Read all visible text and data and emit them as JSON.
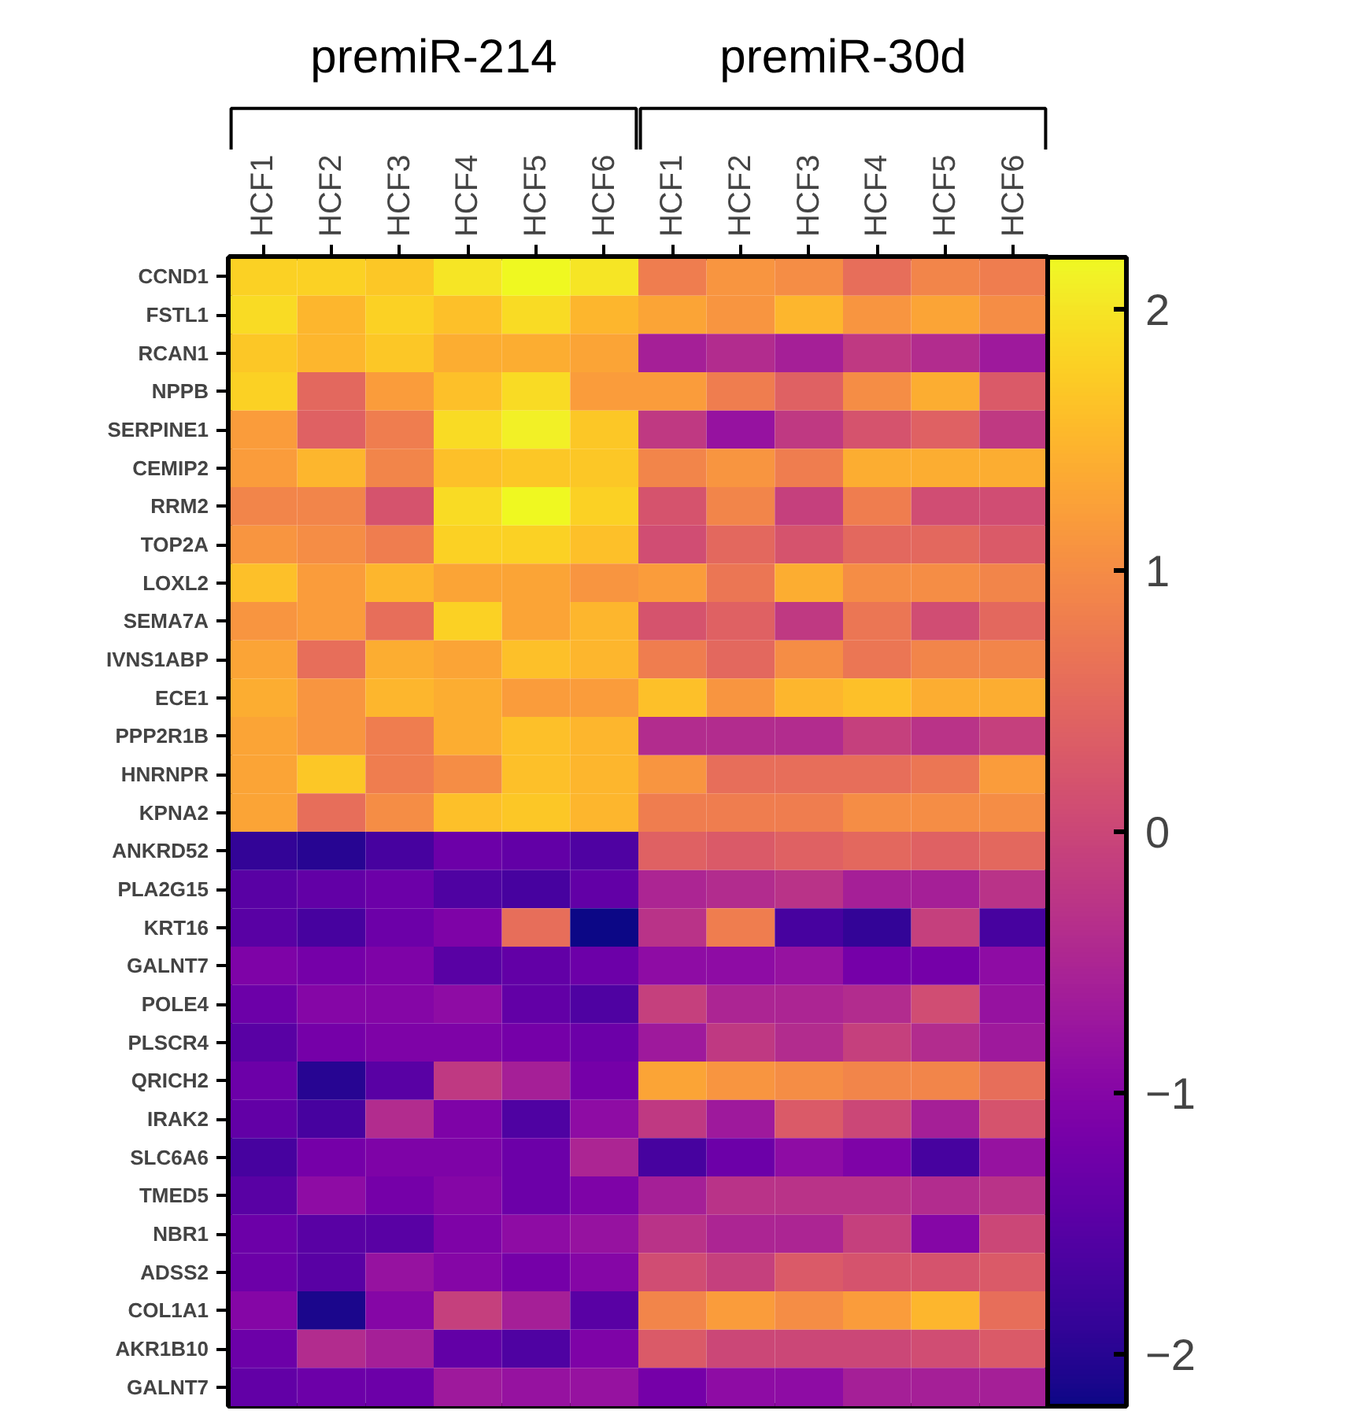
{
  "chart_data": {
    "type": "heatmap",
    "annotations": [
      "premiR-214",
      "premiR-30d"
    ],
    "categories": [
      "HCF1",
      "HCF2",
      "HCF3",
      "HCF4",
      "HCF5",
      "HCF6",
      "HCF1",
      "HCF2",
      "HCF3",
      "HCF4",
      "HCF5",
      "HCF6"
    ],
    "y_categories": [
      "CCND1",
      "FSTL1",
      "RCAN1",
      "NPPB",
      "SERPINE1",
      "CEMIP2",
      "RRM2",
      "TOP2A",
      "LOXL2",
      "SEMA7A",
      "IVNS1ABP",
      "ECE1",
      "PPP2R1B",
      "HNRNPR",
      "KPNA2",
      "ANKRD52",
      "PLA2G15",
      "KRT16",
      "GALNT7",
      "POLE4",
      "PLSCR4",
      "QRICH2",
      "IRAK2",
      "SLC6A6",
      "TMED5",
      "NBR1",
      "ADSS2",
      "COL1A1",
      "AKR1B10",
      "GALNT7"
    ],
    "cells": [
      [
        1.8,
        1.8,
        1.7,
        2.0,
        2.2,
        2.0,
        0.8,
        1.1,
        1.0,
        0.6,
        0.9,
        0.8
      ],
      [
        1.9,
        1.5,
        1.8,
        1.6,
        1.9,
        1.5,
        1.3,
        1.1,
        1.5,
        1.1,
        1.3,
        1.0
      ],
      [
        1.7,
        1.5,
        1.7,
        1.4,
        1.4,
        1.3,
        -0.6,
        -0.4,
        -0.6,
        -0.2,
        -0.4,
        -0.7
      ],
      [
        1.8,
        0.5,
        1.2,
        1.6,
        1.9,
        1.2,
        1.2,
        0.8,
        0.4,
        1.0,
        1.4,
        0.3
      ],
      [
        1.2,
        0.4,
        0.8,
        1.9,
        2.1,
        1.7,
        -0.2,
        -0.8,
        -0.2,
        0.2,
        0.4,
        -0.2
      ],
      [
        1.2,
        1.5,
        0.9,
        1.6,
        1.7,
        1.7,
        0.9,
        1.1,
        0.8,
        1.4,
        1.4,
        1.4
      ],
      [
        0.9,
        0.9,
        0.2,
        1.9,
        2.2,
        1.8,
        0.2,
        0.9,
        -0.1,
        0.8,
        0.1,
        0.1
      ],
      [
        1.1,
        1.0,
        0.8,
        1.8,
        1.8,
        1.6,
        0.1,
        0.5,
        0.2,
        0.5,
        0.5,
        0.3
      ],
      [
        1.6,
        1.2,
        1.5,
        1.3,
        1.3,
        1.1,
        1.2,
        0.7,
        1.4,
        1.0,
        1.0,
        0.9
      ],
      [
        1.1,
        1.2,
        0.6,
        1.8,
        1.3,
        1.5,
        0.2,
        0.4,
        -0.2,
        0.7,
        0.1,
        0.5
      ],
      [
        1.3,
        0.6,
        1.4,
        1.3,
        1.6,
        1.5,
        0.8,
        0.5,
        1.0,
        0.7,
        0.9,
        0.9
      ],
      [
        1.4,
        1.1,
        1.5,
        1.4,
        1.2,
        1.2,
        1.6,
        1.1,
        1.5,
        1.6,
        1.4,
        1.4
      ],
      [
        1.3,
        1.1,
        0.8,
        1.4,
        1.6,
        1.5,
        -0.4,
        -0.4,
        -0.4,
        -0.1,
        -0.3,
        -0.1
      ],
      [
        1.3,
        1.7,
        0.8,
        1.0,
        1.6,
        1.5,
        1.1,
        0.6,
        0.6,
        0.6,
        0.7,
        1.2
      ],
      [
        1.3,
        0.6,
        1.0,
        1.6,
        1.7,
        1.5,
        0.8,
        0.8,
        0.8,
        1.0,
        1.0,
        1.0
      ],
      [
        -1.9,
        -2.0,
        -1.7,
        -1.3,
        -1.4,
        -1.6,
        0.4,
        0.3,
        0.4,
        0.5,
        0.4,
        0.5
      ],
      [
        -1.5,
        -1.4,
        -1.3,
        -1.6,
        -1.7,
        -1.4,
        -0.5,
        -0.4,
        -0.3,
        -0.6,
        -0.6,
        -0.3
      ],
      [
        -1.5,
        -1.7,
        -1.3,
        -1.1,
        0.6,
        -2.2,
        -0.3,
        0.8,
        -1.7,
        -1.9,
        -0.1,
        -1.7
      ],
      [
        -1.1,
        -1.2,
        -1.1,
        -1.5,
        -1.4,
        -1.3,
        -0.9,
        -0.9,
        -0.8,
        -1.2,
        -1.2,
        -0.9
      ],
      [
        -1.3,
        -1.0,
        -1.0,
        -0.9,
        -1.4,
        -1.6,
        -0.1,
        -0.5,
        -0.5,
        -0.4,
        0.1,
        -0.8
      ],
      [
        -1.5,
        -1.2,
        -1.1,
        -1.1,
        -1.2,
        -1.3,
        -0.7,
        -0.2,
        -0.4,
        -0.1,
        -0.4,
        -0.7
      ],
      [
        -1.3,
        -2.0,
        -1.5,
        -0.2,
        -0.6,
        -1.2,
        1.3,
        1.1,
        1.0,
        0.9,
        0.9,
        0.6
      ],
      [
        -1.4,
        -1.7,
        -0.4,
        -1.1,
        -1.6,
        -0.9,
        -0.2,
        -0.7,
        0.3,
        0.0,
        -0.6,
        0.2
      ],
      [
        -1.7,
        -1.2,
        -1.1,
        -1.1,
        -1.3,
        -0.5,
        -1.7,
        -1.3,
        -0.9,
        -1.1,
        -1.7,
        -0.8
      ],
      [
        -1.5,
        -0.9,
        -1.2,
        -1.0,
        -1.3,
        -1.1,
        -0.6,
        -0.3,
        -0.3,
        -0.3,
        -0.4,
        -0.3
      ],
      [
        -1.3,
        -1.5,
        -1.5,
        -1.1,
        -0.9,
        -0.8,
        -0.3,
        -0.5,
        -0.5,
        -0.1,
        -1.0,
        0.0
      ],
      [
        -1.3,
        -1.5,
        -0.8,
        -1.0,
        -1.2,
        -1.0,
        0.1,
        -0.1,
        0.3,
        0.2,
        0.2,
        0.3
      ],
      [
        -1.0,
        -2.1,
        -1.0,
        -0.1,
        -0.6,
        -1.5,
        0.9,
        1.2,
        1.0,
        1.2,
        1.5,
        0.6
      ],
      [
        -1.3,
        -0.4,
        -0.6,
        -1.4,
        -1.6,
        -1.1,
        0.3,
        0.0,
        0.0,
        0.0,
        0.1,
        0.3
      ],
      [
        -1.4,
        -1.3,
        -1.3,
        -0.7,
        -0.8,
        -0.8,
        -1.2,
        -0.9,
        -0.9,
        -0.6,
        -0.6,
        -0.6
      ]
    ],
    "clim": [
      -2.2,
      2.2
    ],
    "cticks": [
      -2,
      -1,
      0,
      1,
      2
    ]
  }
}
